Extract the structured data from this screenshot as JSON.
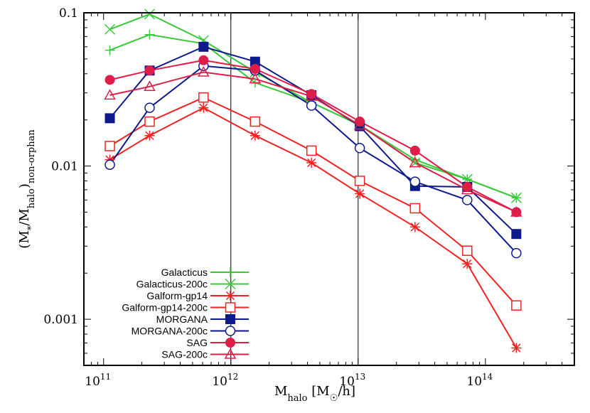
{
  "chart_data": {
    "type": "line",
    "xscale": "log",
    "yscale": "log",
    "xlim": [
      70000000000,
      500000000000000
    ],
    "ylim": [
      0.0005,
      0.1
    ],
    "xlabel": "M<sub>halo</sub> [M<sub>☉</sub>/h]",
    "ylabel": "(M<sub>*</sub>/M<sub>halo</sub>)<sub>non-orphan</sub>",
    "xticks": [
      {
        "v": 100000000000,
        "base": "10",
        "exp": "11"
      },
      {
        "v": 1000000000000,
        "base": "10",
        "exp": "12"
      },
      {
        "v": 10000000000000,
        "base": "10",
        "exp": "13"
      },
      {
        "v": 100000000000000,
        "base": "10",
        "exp": "14"
      }
    ],
    "yticks": [
      {
        "v": 0.001,
        "label": "0.001"
      },
      {
        "v": 0.01,
        "label": "0.01"
      },
      {
        "v": 0.1,
        "label": "0.1"
      }
    ],
    "vlines": [
      1000000000000,
      10000000000000
    ],
    "grid": false,
    "legend_position": "bottom-left",
    "x": [
      112000000000,
      230000000000,
      610000000000,
      1550000000000,
      4300000000000,
      10300000000000,
      28000000000000,
      72000000000000,
      175000000000000
    ],
    "series": [
      {
        "name": "Galacticus",
        "color": "#3cc83c",
        "marker": "plus",
        "values": [
          0.057,
          0.072,
          0.063,
          0.035,
          0.026,
          0.0185,
          0.011,
          0.0082,
          0.0062
        ]
      },
      {
        "name": "Galacticus-200c",
        "color": "#3cc83c",
        "marker": "cross",
        "values": [
          0.078,
          0.098,
          0.066,
          0.041,
          0.026,
          0.0185,
          0.0105,
          0.0082,
          0.0062
        ]
      },
      {
        "name": "Galform-gp14",
        "color": "#f22222",
        "marker": "star",
        "values": [
          0.011,
          0.0158,
          0.024,
          0.0158,
          0.0105,
          0.0066,
          0.004,
          0.0023,
          0.00065
        ]
      },
      {
        "name": "Galform-gp14-200c",
        "color": "#f22222",
        "marker": "open-square",
        "values": [
          0.0135,
          0.0195,
          0.028,
          0.0195,
          0.0126,
          0.008,
          0.0053,
          0.0028,
          0.00123
        ]
      },
      {
        "name": "MORGANA",
        "color": "#0e1a8c",
        "marker": "filled-square",
        "values": [
          0.0205,
          0.042,
          0.06,
          0.048,
          0.029,
          0.0182,
          0.0074,
          0.0073,
          0.0036
        ]
      },
      {
        "name": "MORGANA-200c",
        "color": "#0e1a8c",
        "marker": "open-circle",
        "values": [
          0.0102,
          0.024,
          0.045,
          0.042,
          0.0248,
          0.0131,
          0.0079,
          0.006,
          0.0027
        ]
      },
      {
        "name": "SAG",
        "color": "#de1e49",
        "marker": "filled-circle",
        "values": [
          0.0365,
          0.042,
          0.049,
          0.043,
          0.0295,
          0.0195,
          0.0126,
          0.0073,
          0.005
        ]
      },
      {
        "name": "SAG-200c",
        "color": "#de1e49",
        "marker": "open-triangle",
        "values": [
          0.029,
          0.033,
          0.041,
          0.037,
          0.0285,
          0.0185,
          0.0105,
          0.007,
          0.005
        ]
      }
    ]
  }
}
